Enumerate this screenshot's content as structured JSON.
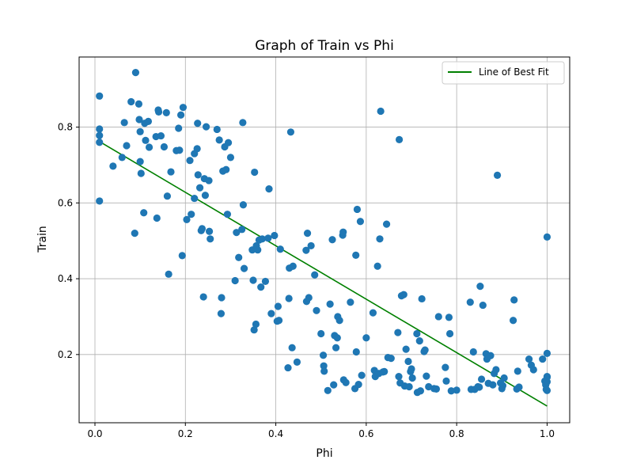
{
  "chart_data": {
    "type": "scatter",
    "title": "Graph of Train vs Phi",
    "xlabel": "Phi",
    "ylabel": "Train",
    "xlim": [
      -0.035,
      1.05
    ],
    "ylim": [
      0.02,
      0.985
    ],
    "xticks": [
      0.0,
      0.2,
      0.4,
      0.6,
      0.8,
      1.0
    ],
    "xtick_labels": [
      "0.0",
      "0.2",
      "0.4",
      "0.6",
      "0.8",
      "1.0"
    ],
    "yticks": [
      0.2,
      0.4,
      0.6,
      0.8
    ],
    "ytick_labels": [
      "0.2",
      "0.4",
      "0.6",
      "0.8"
    ],
    "grid": true,
    "legend_position": "top-right",
    "colors": {
      "points": "#1f77b4",
      "fit_line": "#008000"
    },
    "best_fit": {
      "name": "Line of Best Fit",
      "x": [
        0.01,
        1.0
      ],
      "y": [
        0.762,
        0.064
      ]
    },
    "points": [
      [
        0.01,
        0.882
      ],
      [
        0.01,
        0.795
      ],
      [
        0.01,
        0.778
      ],
      [
        0.01,
        0.76
      ],
      [
        0.01,
        0.605
      ],
      [
        0.04,
        0.697
      ],
      [
        0.06,
        0.72
      ],
      [
        0.065,
        0.812
      ],
      [
        0.07,
        0.751
      ],
      [
        0.08,
        0.867
      ],
      [
        0.088,
        0.52
      ],
      [
        0.09,
        0.944
      ],
      [
        0.097,
        0.861
      ],
      [
        0.098,
        0.82
      ],
      [
        0.1,
        0.788
      ],
      [
        0.1,
        0.709
      ],
      [
        0.102,
        0.678
      ],
      [
        0.108,
        0.574
      ],
      [
        0.11,
        0.81
      ],
      [
        0.112,
        0.765
      ],
      [
        0.118,
        0.815
      ],
      [
        0.12,
        0.747
      ],
      [
        0.135,
        0.775
      ],
      [
        0.137,
        0.56
      ],
      [
        0.14,
        0.845
      ],
      [
        0.141,
        0.84
      ],
      [
        0.146,
        0.777
      ],
      [
        0.153,
        0.748
      ],
      [
        0.158,
        0.838
      ],
      [
        0.16,
        0.618
      ],
      [
        0.163,
        0.412
      ],
      [
        0.168,
        0.682
      ],
      [
        0.18,
        0.738
      ],
      [
        0.185,
        0.797
      ],
      [
        0.187,
        0.739
      ],
      [
        0.19,
        0.832
      ],
      [
        0.193,
        0.461
      ],
      [
        0.195,
        0.852
      ],
      [
        0.203,
        0.556
      ],
      [
        0.21,
        0.712
      ],
      [
        0.213,
        0.57
      ],
      [
        0.22,
        0.612
      ],
      [
        0.22,
        0.73
      ],
      [
        0.226,
        0.743
      ],
      [
        0.227,
        0.81
      ],
      [
        0.228,
        0.674
      ],
      [
        0.232,
        0.64
      ],
      [
        0.235,
        0.527
      ],
      [
        0.237,
        0.532
      ],
      [
        0.24,
        0.352
      ],
      [
        0.242,
        0.664
      ],
      [
        0.244,
        0.62
      ],
      [
        0.246,
        0.801
      ],
      [
        0.252,
        0.659
      ],
      [
        0.253,
        0.525
      ],
      [
        0.255,
        0.505
      ],
      [
        0.27,
        0.794
      ],
      [
        0.275,
        0.766
      ],
      [
        0.279,
        0.308
      ],
      [
        0.28,
        0.35
      ],
      [
        0.283,
        0.684
      ],
      [
        0.287,
        0.748
      ],
      [
        0.29,
        0.688
      ],
      [
        0.293,
        0.57
      ],
      [
        0.295,
        0.759
      ],
      [
        0.3,
        0.72
      ],
      [
        0.31,
        0.395
      ],
      [
        0.313,
        0.522
      ],
      [
        0.318,
        0.456
      ],
      [
        0.325,
        0.53
      ],
      [
        0.327,
        0.812
      ],
      [
        0.328,
        0.595
      ],
      [
        0.33,
        0.427
      ],
      [
        0.348,
        0.476
      ],
      [
        0.35,
        0.396
      ],
      [
        0.352,
        0.265
      ],
      [
        0.353,
        0.681
      ],
      [
        0.356,
        0.28
      ],
      [
        0.357,
        0.487
      ],
      [
        0.36,
        0.476
      ],
      [
        0.363,
        0.502
      ],
      [
        0.367,
        0.378
      ],
      [
        0.37,
        0.505
      ],
      [
        0.377,
        0.393
      ],
      [
        0.383,
        0.507
      ],
      [
        0.385,
        0.637
      ],
      [
        0.39,
        0.308
      ],
      [
        0.397,
        0.514
      ],
      [
        0.403,
        0.288
      ],
      [
        0.405,
        0.327
      ],
      [
        0.407,
        0.29
      ],
      [
        0.41,
        0.478
      ],
      [
        0.427,
        0.165
      ],
      [
        0.429,
        0.348
      ],
      [
        0.43,
        0.428
      ],
      [
        0.433,
        0.787
      ],
      [
        0.436,
        0.218
      ],
      [
        0.438,
        0.433
      ],
      [
        0.447,
        0.18
      ],
      [
        0.467,
        0.475
      ],
      [
        0.468,
        0.34
      ],
      [
        0.47,
        0.52
      ],
      [
        0.473,
        0.35
      ],
      [
        0.478,
        0.487
      ],
      [
        0.486,
        0.41
      ],
      [
        0.49,
        0.316
      ],
      [
        0.5,
        0.255
      ],
      [
        0.505,
        0.198
      ],
      [
        0.506,
        0.17
      ],
      [
        0.507,
        0.156
      ],
      [
        0.515,
        0.105
      ],
      [
        0.52,
        0.333
      ],
      [
        0.525,
        0.503
      ],
      [
        0.528,
        0.12
      ],
      [
        0.53,
        0.25
      ],
      [
        0.533,
        0.218
      ],
      [
        0.536,
        0.244
      ],
      [
        0.537,
        0.3
      ],
      [
        0.541,
        0.29
      ],
      [
        0.548,
        0.515
      ],
      [
        0.549,
        0.523
      ],
      [
        0.55,
        0.133
      ],
      [
        0.555,
        0.126
      ],
      [
        0.565,
        0.338
      ],
      [
        0.575,
        0.11
      ],
      [
        0.577,
        0.462
      ],
      [
        0.578,
        0.207
      ],
      [
        0.58,
        0.583
      ],
      [
        0.583,
        0.121
      ],
      [
        0.587,
        0.551
      ],
      [
        0.59,
        0.145
      ],
      [
        0.6,
        0.244
      ],
      [
        0.615,
        0.31
      ],
      [
        0.618,
        0.158
      ],
      [
        0.62,
        0.142
      ],
      [
        0.625,
        0.433
      ],
      [
        0.628,
        0.15
      ],
      [
        0.63,
        0.505
      ],
      [
        0.632,
        0.842
      ],
      [
        0.637,
        0.154
      ],
      [
        0.64,
        0.155
      ],
      [
        0.645,
        0.544
      ],
      [
        0.648,
        0.192
      ],
      [
        0.655,
        0.19
      ],
      [
        0.67,
        0.258
      ],
      [
        0.672,
        0.142
      ],
      [
        0.673,
        0.767
      ],
      [
        0.675,
        0.125
      ],
      [
        0.678,
        0.355
      ],
      [
        0.683,
        0.358
      ],
      [
        0.685,
        0.117
      ],
      [
        0.688,
        0.214
      ],
      [
        0.693,
        0.182
      ],
      [
        0.695,
        0.115
      ],
      [
        0.698,
        0.155
      ],
      [
        0.7,
        0.162
      ],
      [
        0.702,
        0.138
      ],
      [
        0.712,
        0.255
      ],
      [
        0.713,
        0.1
      ],
      [
        0.718,
        0.236
      ],
      [
        0.72,
        0.104
      ],
      [
        0.723,
        0.347
      ],
      [
        0.728,
        0.208
      ],
      [
        0.73,
        0.212
      ],
      [
        0.733,
        0.143
      ],
      [
        0.738,
        0.115
      ],
      [
        0.75,
        0.11
      ],
      [
        0.755,
        0.109
      ],
      [
        0.76,
        0.3
      ],
      [
        0.775,
        0.166
      ],
      [
        0.777,
        0.13
      ],
      [
        0.783,
        0.298
      ],
      [
        0.785,
        0.255
      ],
      [
        0.788,
        0.104
      ],
      [
        0.8,
        0.106
      ],
      [
        0.83,
        0.338
      ],
      [
        0.832,
        0.108
      ],
      [
        0.837,
        0.207
      ],
      [
        0.84,
        0.108
      ],
      [
        0.847,
        0.115
      ],
      [
        0.85,
        0.114
      ],
      [
        0.852,
        0.38
      ],
      [
        0.855,
        0.135
      ],
      [
        0.858,
        0.33
      ],
      [
        0.865,
        0.202
      ],
      [
        0.867,
        0.188
      ],
      [
        0.87,
        0.124
      ],
      [
        0.875,
        0.197
      ],
      [
        0.88,
        0.12
      ],
      [
        0.883,
        0.15
      ],
      [
        0.887,
        0.16
      ],
      [
        0.89,
        0.673
      ],
      [
        0.897,
        0.125
      ],
      [
        0.9,
        0.11
      ],
      [
        0.902,
        0.118
      ],
      [
        0.905,
        0.138
      ],
      [
        0.925,
        0.29
      ],
      [
        0.927,
        0.344
      ],
      [
        0.933,
        0.109
      ],
      [
        0.935,
        0.156
      ],
      [
        0.938,
        0.114
      ],
      [
        0.96,
        0.188
      ],
      [
        0.965,
        0.172
      ],
      [
        0.97,
        0.16
      ],
      [
        0.99,
        0.188
      ],
      [
        0.995,
        0.13
      ],
      [
        0.997,
        0.12
      ],
      [
        0.998,
        0.108
      ],
      [
        1.0,
        0.51
      ],
      [
        1.0,
        0.203
      ],
      [
        1.0,
        0.142
      ],
      [
        1.0,
        0.128
      ],
      [
        1.0,
        0.105
      ],
      [
        1.0,
        0.14
      ]
    ]
  }
}
